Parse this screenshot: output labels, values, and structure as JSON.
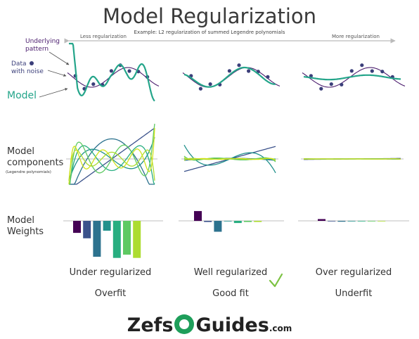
{
  "title": "Model Regularization",
  "subtitle": "Example: L2 regularization of summed Legendre polynomials",
  "arrow": {
    "left_label": "Less regularization",
    "right_label": "More regularization"
  },
  "labels": {
    "underlying_line1": "Underlying",
    "underlying_line2": "pattern",
    "data_line1": "Data",
    "data_line2": "with noise",
    "model": "Model",
    "components_line1": "Model",
    "components_line2": "components",
    "components_note": "(Legendre polynomials)",
    "weights_line1": "Model",
    "weights_line2": "Weights"
  },
  "columns": [
    {
      "name": "Under regularized",
      "fit": "Overfit",
      "check": false
    },
    {
      "name": "Well regularized",
      "fit": "Good fit",
      "check": true
    },
    {
      "name": "Over regularized",
      "fit": "Underfit",
      "check": false
    }
  ],
  "colors": {
    "underlying": "#4b1d6e",
    "model": "#24a58a",
    "data": "#3b3f7a",
    "check": "#7cc242",
    "arrow": "#bbbbbb",
    "components": [
      "#440154",
      "#3b528b",
      "#2c728e",
      "#21918c",
      "#28ae80",
      "#5ec962",
      "#addc30",
      "#d2e21b"
    ]
  },
  "weights": {
    "under": [
      -0.55,
      -0.8,
      -1.65,
      -0.45,
      -1.7,
      -1.55,
      -1.7
    ],
    "well": [
      0.45,
      -0.05,
      -0.5,
      0.0,
      -0.1,
      -0.05,
      -0.05
    ],
    "over": [
      0.08,
      -0.02,
      -0.04,
      0.0,
      -0.02,
      -0.02,
      -0.02
    ]
  },
  "logo": {
    "text_left": "Zefs",
    "text_right": "Guides",
    "suffix": ".com"
  }
}
